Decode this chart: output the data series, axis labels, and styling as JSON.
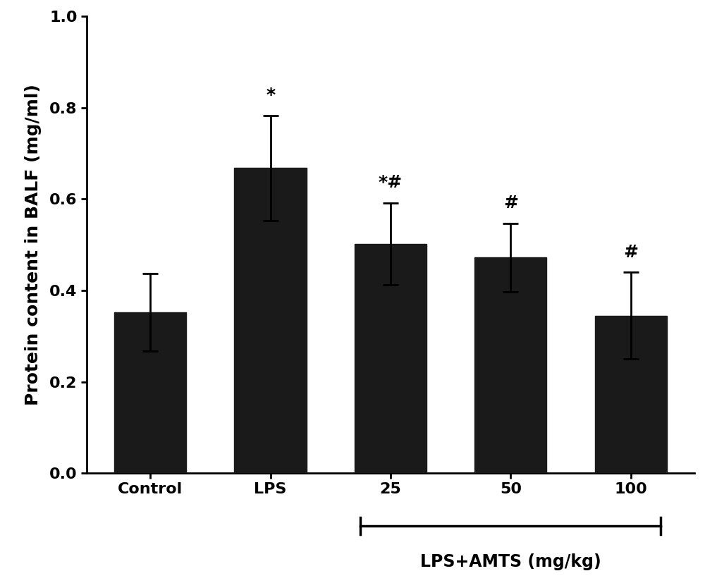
{
  "categories": [
    "Control",
    "LPS",
    "25",
    "50",
    "100"
  ],
  "values": [
    0.352,
    0.668,
    0.502,
    0.472,
    0.345
  ],
  "errors": [
    0.085,
    0.115,
    0.09,
    0.075,
    0.095
  ],
  "bar_color": "#1a1a1a",
  "bar_width": 0.6,
  "ylabel": "Protein content in BALF (mg/ml)",
  "ylim": [
    0,
    1.0
  ],
  "yticks": [
    0.0,
    0.2,
    0.4,
    0.6,
    0.8,
    1.0
  ],
  "background_color": "#ffffff",
  "annotations": [
    "",
    "*",
    "*#",
    "#",
    "#"
  ],
  "bracket_label": "LPS+AMTS (mg/kg)",
  "bracket_bars": [
    2,
    3,
    4
  ],
  "figsize": [
    10.0,
    8.27
  ],
  "dpi": 100,
  "label_fontsize": 18,
  "tick_fontsize": 16,
  "annot_fontsize": 18,
  "bracket_fontsize": 17
}
